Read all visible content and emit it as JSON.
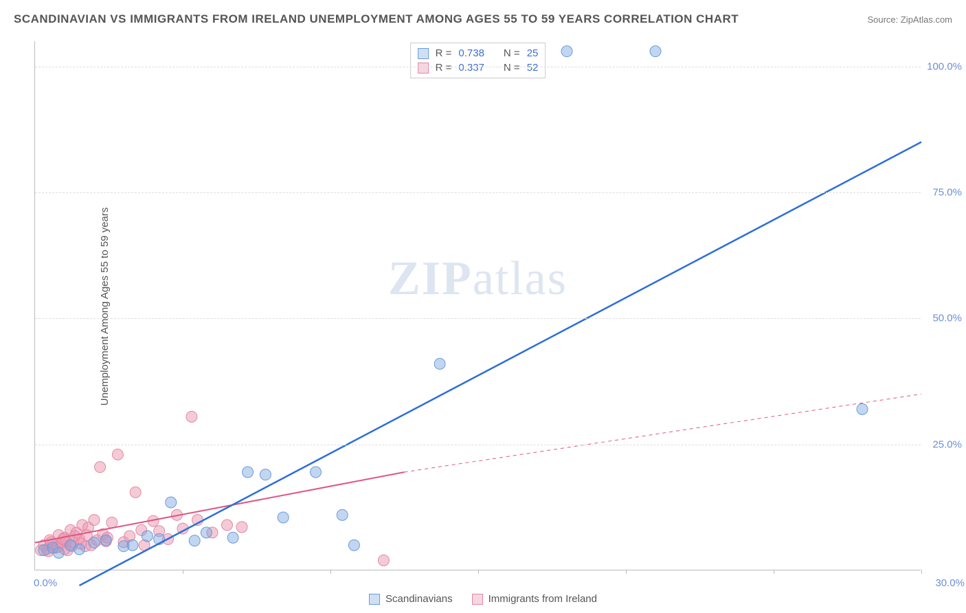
{
  "title": "SCANDINAVIAN VS IMMIGRANTS FROM IRELAND UNEMPLOYMENT AMONG AGES 55 TO 59 YEARS CORRELATION CHART",
  "source": "Source: ZipAtlas.com",
  "y_axis_label": "Unemployment Among Ages 55 to 59 years",
  "watermark_text_a": "ZIP",
  "watermark_text_b": "atlas",
  "chart": {
    "type": "scatter-with-regression",
    "x_min": 0,
    "x_max": 30,
    "y_min": 0,
    "y_max": 105,
    "x_tick_step": 5,
    "y_ticks": [
      25,
      50,
      75,
      100
    ],
    "y_tick_labels": [
      "25.0%",
      "50.0%",
      "75.0%",
      "100.0%"
    ],
    "x_label_start": "0.0%",
    "x_label_end": "30.0%",
    "grid_color": "#dddddd",
    "background_color": "#ffffff",
    "series": [
      {
        "id": "scandinavians",
        "label": "Scandinavians",
        "color_fill": "rgba(120,165,225,0.45)",
        "color_stroke": "#6b9bd8",
        "swatch_fill": "#cfe0f5",
        "swatch_border": "#6b9bd8",
        "r_value": "0.738",
        "n_value": "25",
        "marker_radius": 8,
        "regression": {
          "x1": 1.5,
          "y1": -3,
          "x2": 30,
          "y2": 85,
          "stroke": "#2e6fd8",
          "width": 2.5,
          "dash": "none"
        },
        "points": [
          [
            0.3,
            4.0
          ],
          [
            0.6,
            4.5
          ],
          [
            0.8,
            3.5
          ],
          [
            1.2,
            5.0
          ],
          [
            1.5,
            4.2
          ],
          [
            2.0,
            5.5
          ],
          [
            2.4,
            6.0
          ],
          [
            3.0,
            4.8
          ],
          [
            3.8,
            6.8
          ],
          [
            4.6,
            13.5
          ],
          [
            5.4,
            5.9
          ],
          [
            6.7,
            6.5
          ],
          [
            7.2,
            19.5
          ],
          [
            7.8,
            19.0
          ],
          [
            8.4,
            10.5
          ],
          [
            9.5,
            19.5
          ],
          [
            10.4,
            11.0
          ],
          [
            10.8,
            5.0
          ],
          [
            13.7,
            41.0
          ],
          [
            18.0,
            103.0
          ],
          [
            21.0,
            103.0
          ],
          [
            28.0,
            32.0
          ],
          [
            4.2,
            6.2
          ],
          [
            5.8,
            7.5
          ],
          [
            3.3,
            5.0
          ]
        ]
      },
      {
        "id": "ireland",
        "label": "Immigrants from Ireland",
        "color_fill": "rgba(235,150,175,0.5)",
        "color_stroke": "#e08aa5",
        "swatch_fill": "#f6d6e0",
        "swatch_border": "#e08aa5",
        "r_value": "0.337",
        "n_value": "52",
        "marker_radius": 8,
        "regression": {
          "x1": 0,
          "y1": 5.5,
          "x2": 12.5,
          "y2": 19.5,
          "stroke": "#e05580",
          "width": 2,
          "dash": "none",
          "extend": {
            "x2": 30,
            "y2": 35,
            "dash": "5,5",
            "width": 1
          }
        },
        "points": [
          [
            0.2,
            4.0
          ],
          [
            0.3,
            5.0
          ],
          [
            0.4,
            4.2
          ],
          [
            0.5,
            6.0
          ],
          [
            0.6,
            5.2
          ],
          [
            0.7,
            4.5
          ],
          [
            0.8,
            7.0
          ],
          [
            0.9,
            5.4
          ],
          [
            1.0,
            6.5
          ],
          [
            1.1,
            4.0
          ],
          [
            1.2,
            8.0
          ],
          [
            1.3,
            5.5
          ],
          [
            1.4,
            7.5
          ],
          [
            1.5,
            6.2
          ],
          [
            1.6,
            9.0
          ],
          [
            1.7,
            4.8
          ],
          [
            1.8,
            8.5
          ],
          [
            1.9,
            5.0
          ],
          [
            2.0,
            10.0
          ],
          [
            2.1,
            6.0
          ],
          [
            2.2,
            20.5
          ],
          [
            2.3,
            7.2
          ],
          [
            2.4,
            5.8
          ],
          [
            2.6,
            9.5
          ],
          [
            2.8,
            23.0
          ],
          [
            3.0,
            5.6
          ],
          [
            3.2,
            6.8
          ],
          [
            3.4,
            15.5
          ],
          [
            3.6,
            8.0
          ],
          [
            3.7,
            5.0
          ],
          [
            4.0,
            9.8
          ],
          [
            4.2,
            7.8
          ],
          [
            4.5,
            6.2
          ],
          [
            4.8,
            11.0
          ],
          [
            5.0,
            8.3
          ],
          [
            5.3,
            30.5
          ],
          [
            5.5,
            10.0
          ],
          [
            6.0,
            7.5
          ],
          [
            6.5,
            9.0
          ],
          [
            7.0,
            8.6
          ],
          [
            11.8,
            2.0
          ],
          [
            1.0,
            4.2
          ],
          [
            1.05,
            5.8
          ],
          [
            1.25,
            4.8
          ],
          [
            1.35,
            6.8
          ],
          [
            1.55,
            5.3
          ],
          [
            1.75,
            7.0
          ],
          [
            0.45,
            3.8
          ],
          [
            0.55,
            5.6
          ],
          [
            0.75,
            4.6
          ],
          [
            0.95,
            6.2
          ],
          [
            2.45,
            6.5
          ]
        ]
      }
    ]
  },
  "stats_legend": {
    "r_label": "R =",
    "n_label": "N ="
  }
}
